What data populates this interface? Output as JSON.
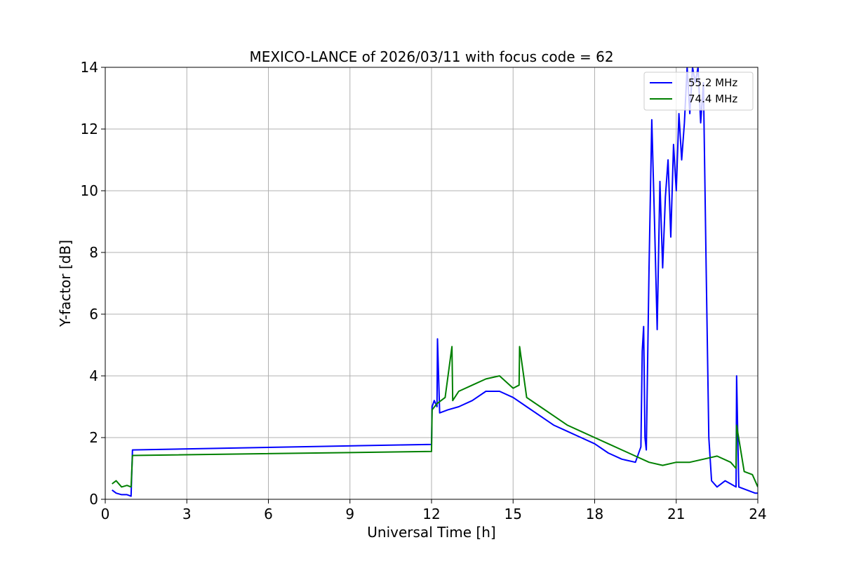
{
  "chart_data": {
    "type": "line",
    "title": "MEXICO-LANCE of 2026/03/11 with focus code = 62",
    "xlabel": "Universal Time [h]",
    "ylabel": "Y-factor [dB]",
    "xlim": [
      0,
      24
    ],
    "ylim": [
      0,
      14
    ],
    "xticks": [
      0,
      3,
      6,
      9,
      12,
      15,
      18,
      21,
      24
    ],
    "yticks": [
      0,
      2,
      4,
      6,
      8,
      10,
      12,
      14
    ],
    "grid": true,
    "legend_position": "top-right",
    "series": [
      {
        "name": "55.2 MHz",
        "color": "#0000ff",
        "x": [
          0.25,
          0.4,
          0.6,
          0.8,
          0.95,
          1.0,
          12.0,
          12.02,
          12.1,
          12.2,
          12.22,
          12.3,
          12.6,
          13.0,
          13.5,
          14.0,
          14.5,
          15.0,
          15.5,
          16.0,
          16.5,
          17.0,
          17.5,
          18.0,
          18.5,
          19.0,
          19.5,
          19.7,
          19.75,
          19.8,
          19.85,
          19.9,
          20.0,
          20.1,
          20.2,
          20.3,
          20.4,
          20.5,
          20.6,
          20.7,
          20.8,
          20.9,
          21.0,
          21.1,
          21.2,
          21.3,
          21.4,
          21.5,
          21.6,
          21.7,
          21.8,
          21.9,
          22.0,
          22.1,
          22.2,
          22.3,
          22.5,
          22.8,
          23.0,
          23.2,
          23.22,
          23.3,
          23.6,
          23.9,
          24.0
        ],
        "y": [
          0.3,
          0.2,
          0.15,
          0.15,
          0.1,
          1.6,
          1.78,
          3.0,
          3.2,
          3.0,
          5.2,
          2.8,
          2.9,
          3.0,
          3.2,
          3.5,
          3.5,
          3.3,
          3.0,
          2.7,
          2.4,
          2.2,
          2.0,
          1.8,
          1.5,
          1.3,
          1.2,
          1.7,
          4.8,
          5.6,
          2.0,
          1.6,
          7.5,
          12.3,
          9.0,
          5.5,
          10.3,
          7.5,
          9.8,
          11.0,
          8.5,
          11.5,
          10.0,
          12.5,
          11.0,
          12.2,
          14.0,
          12.5,
          14.0,
          13.5,
          14.0,
          12.2,
          13.5,
          7.5,
          2.0,
          0.6,
          0.4,
          0.6,
          0.5,
          0.4,
          4.0,
          0.4,
          0.3,
          0.2,
          0.2
        ]
      },
      {
        "name": "74.4 MHz",
        "color": "#008000",
        "x": [
          0.25,
          0.4,
          0.6,
          0.8,
          0.95,
          1.0,
          12.0,
          12.02,
          12.2,
          12.5,
          12.75,
          12.78,
          13.0,
          13.5,
          14.0,
          14.5,
          15.0,
          15.22,
          15.24,
          15.5,
          16.0,
          16.5,
          17.0,
          17.5,
          18.0,
          18.5,
          19.0,
          19.5,
          20.0,
          20.5,
          21.0,
          21.5,
          22.0,
          22.5,
          23.0,
          23.2,
          23.22,
          23.5,
          23.8,
          24.0
        ],
        "y": [
          0.5,
          0.6,
          0.4,
          0.45,
          0.4,
          1.42,
          1.55,
          2.9,
          3.1,
          3.3,
          4.95,
          3.2,
          3.5,
          3.7,
          3.9,
          4.0,
          3.6,
          3.7,
          4.95,
          3.3,
          3.0,
          2.7,
          2.4,
          2.2,
          2.0,
          1.8,
          1.6,
          1.4,
          1.2,
          1.1,
          1.2,
          1.2,
          1.3,
          1.4,
          1.2,
          1.0,
          2.4,
          0.9,
          0.8,
          0.4
        ]
      }
    ]
  }
}
